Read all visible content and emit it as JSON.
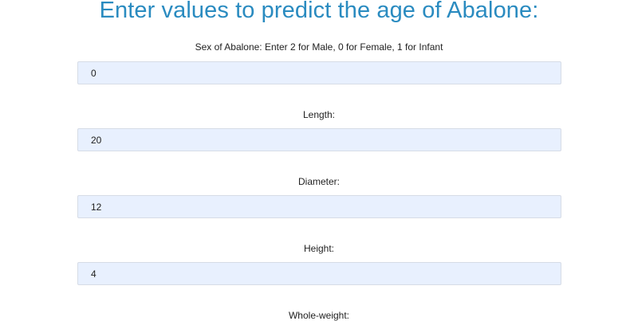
{
  "page": {
    "title": "Enter values to predict the age of Abalone:"
  },
  "fields": [
    {
      "label": "Sex of Abalone: Enter 2 for Male, 0 for Female, 1 for Infant",
      "value": "0"
    },
    {
      "label": "Length:",
      "value": "20"
    },
    {
      "label": "Diameter:",
      "value": "12"
    },
    {
      "label": "Height:",
      "value": "4"
    },
    {
      "label": "Whole-weight:"
    }
  ]
}
